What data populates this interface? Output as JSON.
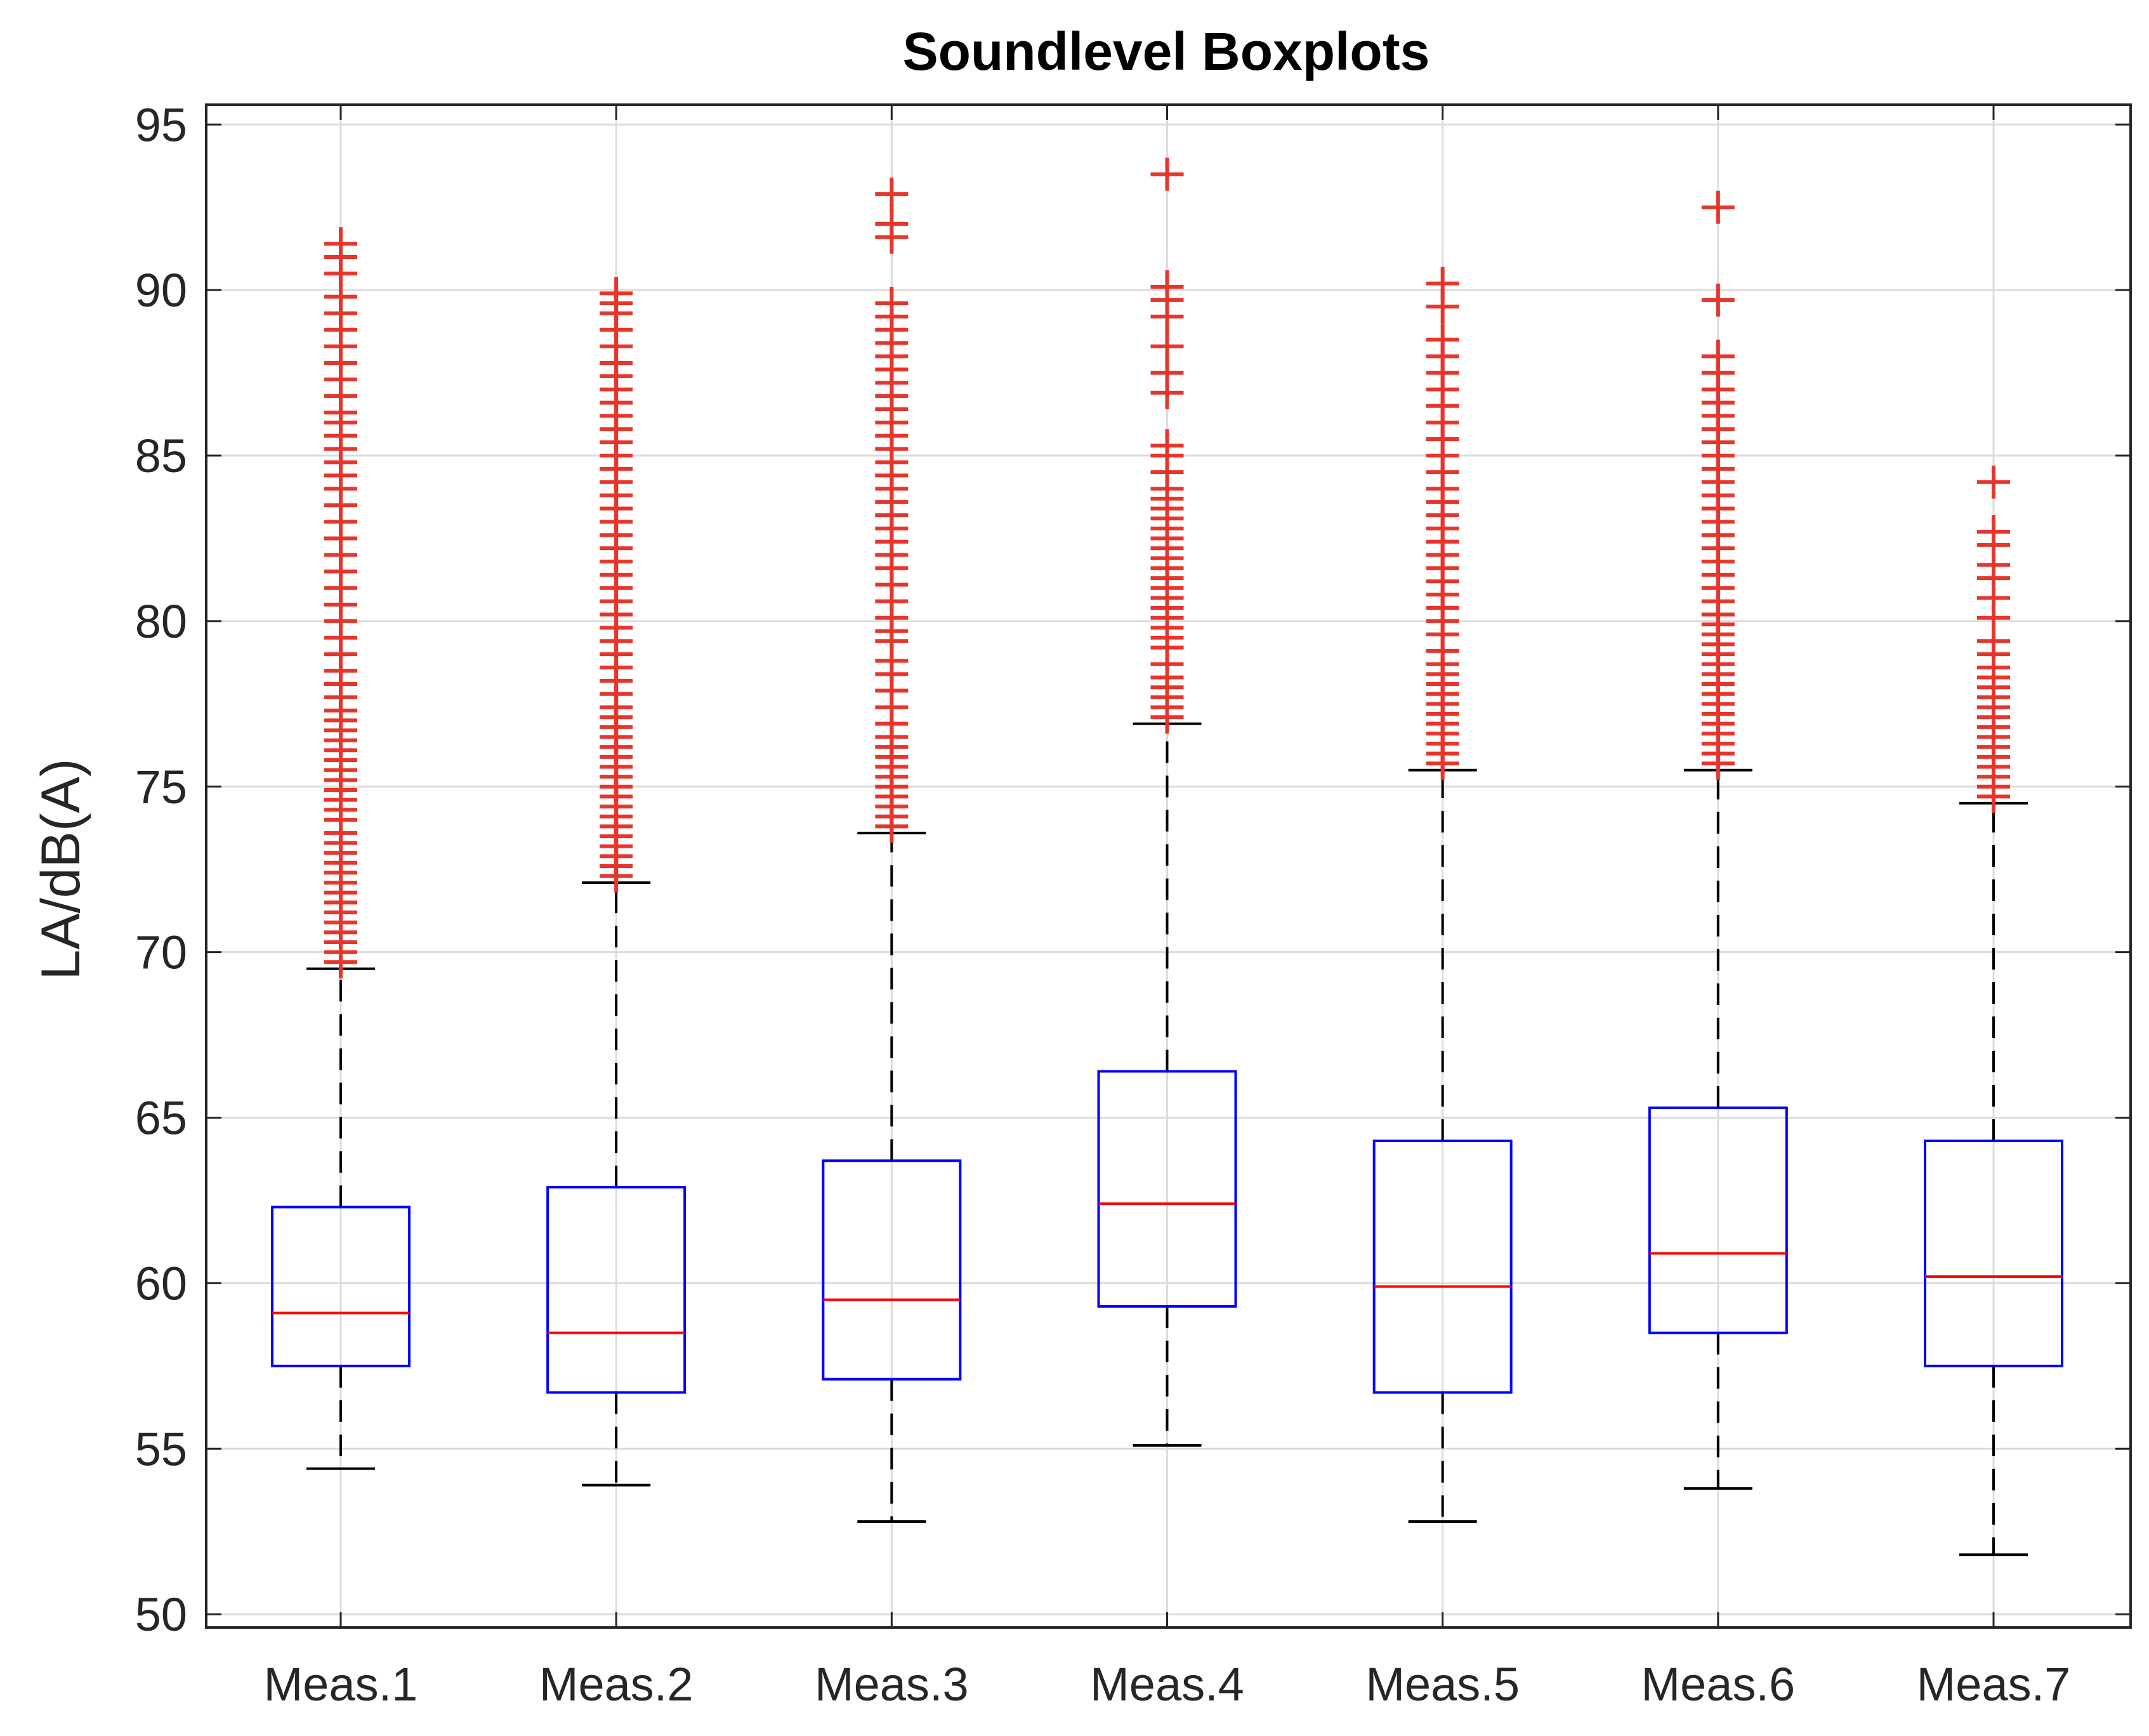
{
  "chart_data": {
    "type": "boxplot",
    "title": "Soundlevel Boxplots",
    "xlabel": "",
    "ylabel": "LA/dB(A)",
    "ylim": [
      49.6,
      95.6
    ],
    "yticks": [
      50,
      55,
      60,
      65,
      70,
      75,
      80,
      85,
      90,
      95
    ],
    "grid": true,
    "colors": {
      "box": "#0000ff",
      "median": "#ff0000",
      "whisker": "#000000",
      "outlier": "#e8352b",
      "grid": "#dcdcdc",
      "axis": "#262626"
    },
    "categories": [
      "Meas.1",
      "Meas.2",
      "Meas.3",
      "Meas.4",
      "Meas.5",
      "Meas.6",
      "Meas.7"
    ],
    "boxes": [
      {
        "name": "Meas.1",
        "min": 54.4,
        "q1": 57.5,
        "median": 59.1,
        "q3": 62.3,
        "max": 69.5,
        "outliers": [
          69.7,
          70.0,
          70.3,
          70.6,
          70.9,
          71.2,
          71.5,
          71.8,
          72.1,
          72.4,
          72.7,
          73.0,
          73.3,
          73.6,
          74.0,
          74.3,
          74.6,
          74.9,
          75.2,
          75.5,
          75.8,
          76.1,
          76.4,
          76.7,
          77.0,
          77.3,
          77.7,
          78.1,
          78.5,
          79.0,
          79.5,
          80.0,
          80.5,
          81.0,
          81.5,
          82.0,
          82.5,
          83.0,
          83.5,
          84.0,
          84.4,
          84.8,
          85.2,
          85.6,
          86.0,
          86.3,
          86.8,
          87.3,
          87.8,
          88.3,
          88.8,
          89.3,
          89.8,
          90.5,
          91.0,
          91.4
        ]
      },
      {
        "name": "Meas.2",
        "min": 53.9,
        "q1": 56.7,
        "median": 58.5,
        "q3": 62.9,
        "max": 72.1,
        "outliers": [
          72.3,
          72.6,
          72.9,
          73.2,
          73.5,
          73.8,
          74.1,
          74.4,
          74.7,
          75.0,
          75.3,
          75.6,
          75.9,
          76.2,
          76.5,
          76.8,
          77.1,
          77.4,
          77.8,
          78.2,
          78.6,
          79.0,
          79.4,
          79.8,
          80.2,
          80.6,
          81.0,
          81.4,
          81.8,
          82.2,
          82.6,
          83.0,
          83.4,
          83.8,
          84.2,
          84.6,
          85.0,
          85.4,
          85.8,
          86.2,
          86.6,
          87.0,
          87.4,
          87.8,
          88.3,
          88.8,
          89.3,
          89.6,
          89.9
        ]
      },
      {
        "name": "Meas.3",
        "min": 52.8,
        "q1": 57.1,
        "median": 59.5,
        "q3": 63.7,
        "max": 73.6,
        "outliers": [
          73.8,
          74.1,
          74.4,
          74.7,
          75.0,
          75.3,
          75.6,
          75.9,
          76.2,
          76.5,
          76.9,
          77.4,
          77.9,
          78.4,
          78.8,
          79.4,
          79.7,
          80.1,
          80.6,
          81.1,
          81.6,
          82.0,
          82.4,
          82.8,
          83.2,
          83.6,
          84.0,
          84.4,
          84.8,
          85.2,
          85.6,
          86.0,
          86.4,
          86.8,
          87.2,
          87.6,
          88.0,
          88.4,
          88.8,
          89.2,
          89.6,
          91.6,
          92.0,
          92.9
        ]
      },
      {
        "name": "Meas.4",
        "min": 55.1,
        "q1": 59.3,
        "median": 62.4,
        "q3": 66.4,
        "max": 76.9,
        "outliers": [
          77.1,
          77.4,
          77.7,
          78.0,
          78.3,
          78.7,
          79.2,
          79.5,
          79.8,
          80.1,
          80.4,
          80.7,
          81.0,
          81.3,
          81.6,
          81.9,
          82.2,
          82.5,
          82.8,
          83.1,
          83.4,
          83.7,
          84.0,
          84.5,
          85.0,
          85.3,
          86.9,
          87.5,
          88.3,
          89.2,
          89.7,
          90.1,
          93.5
        ]
      },
      {
        "name": "Meas.5",
        "min": 52.8,
        "q1": 56.7,
        "median": 59.9,
        "q3": 64.3,
        "max": 75.5,
        "outliers": [
          75.7,
          76.0,
          76.3,
          76.6,
          76.9,
          77.2,
          77.5,
          77.8,
          78.1,
          78.4,
          78.7,
          79.1,
          79.6,
          80.0,
          80.4,
          80.8,
          81.2,
          81.6,
          82.0,
          82.4,
          82.8,
          83.2,
          83.6,
          84.0,
          84.5,
          85.0,
          85.5,
          86.0,
          86.5,
          87.0,
          87.5,
          88.0,
          88.5,
          89.5,
          90.2
        ]
      },
      {
        "name": "Meas.6",
        "min": 53.8,
        "q1": 58.5,
        "median": 60.9,
        "q3": 65.3,
        "max": 75.5,
        "outliers": [
          75.7,
          76.0,
          76.3,
          76.6,
          76.9,
          77.2,
          77.5,
          77.8,
          78.1,
          78.4,
          78.7,
          79.0,
          79.3,
          79.6,
          79.9,
          80.2,
          80.6,
          81.0,
          81.4,
          81.8,
          82.2,
          82.6,
          83.0,
          83.4,
          83.8,
          84.2,
          84.6,
          85.0,
          85.4,
          85.8,
          86.2,
          86.6,
          87.0,
          87.5,
          88.0,
          89.7,
          92.5
        ]
      },
      {
        "name": "Meas.7",
        "min": 51.8,
        "q1": 57.5,
        "median": 60.2,
        "q3": 64.3,
        "max": 74.5,
        "outliers": [
          74.7,
          75.0,
          75.3,
          75.6,
          75.9,
          76.2,
          76.5,
          76.8,
          77.1,
          77.4,
          77.7,
          78.0,
          78.3,
          78.6,
          79.0,
          79.4,
          80.1,
          80.7,
          81.3,
          81.7,
          82.3,
          82.7,
          84.2
        ]
      }
    ]
  }
}
